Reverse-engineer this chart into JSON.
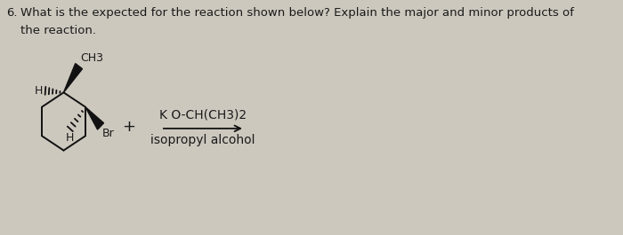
{
  "background_color": "#cdc8be",
  "title_number": "6.",
  "title_text_line1": "What is the expected for the reaction shown below? Explain the major and minor products of",
  "title_text_line2": "the reaction.",
  "reagent_line1": "K O-CH(CH3)2",
  "reagent_line2": "isopropyl alcohol",
  "plus_sign": "+",
  "text_color": "#1a1a1a",
  "title_fontsize": 9.5,
  "reagent_fontsize": 10,
  "plus_fontsize": 13,
  "ch3_label": "CH3",
  "h_top_label": "H",
  "br_label": "Br",
  "h_bottom_label": "H",
  "ring_color": "#111111",
  "ring_lw": 1.4
}
